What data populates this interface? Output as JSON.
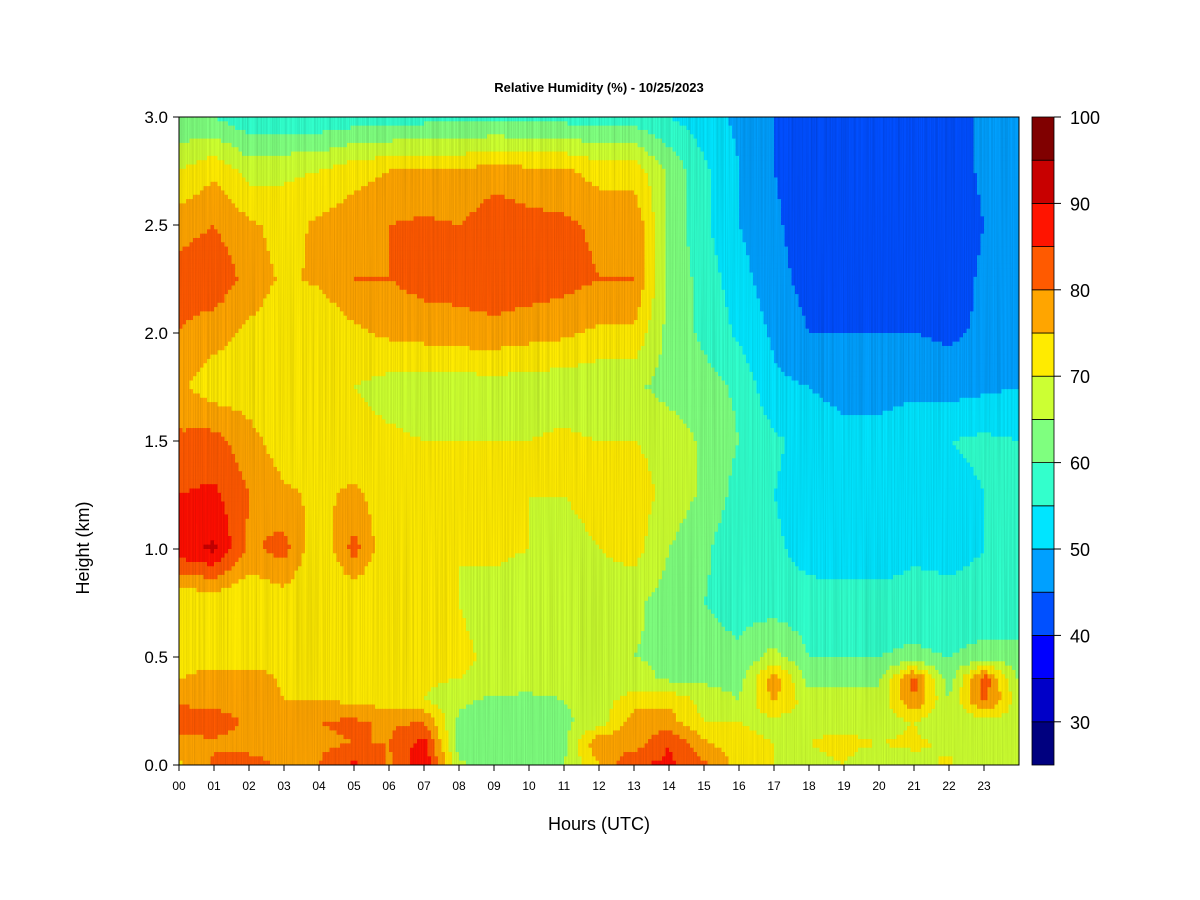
{
  "chart_data": {
    "type": "heatmap",
    "title": "Relative Humidity (%) - 10/25/2023",
    "xlabel": "Hours (UTC)",
    "ylabel": "Height (km)",
    "x_tick_labels": [
      "00",
      "01",
      "02",
      "03",
      "04",
      "05",
      "06",
      "07",
      "08",
      "09",
      "10",
      "11",
      "12",
      "13",
      "14",
      "15",
      "16",
      "17",
      "18",
      "19",
      "20",
      "21",
      "22",
      "23"
    ],
    "xlim": [
      0,
      24
    ],
    "y_ticks": [
      0.0,
      0.5,
      1.0,
      1.5,
      2.0,
      2.5,
      3.0
    ],
    "y_tick_labels": [
      "0.0",
      "0.5",
      "1.0",
      "1.5",
      "2.0",
      "2.5",
      "3.0"
    ],
    "ylim": [
      0,
      3
    ],
    "colorbar": {
      "levels": [
        25,
        30,
        35,
        40,
        45,
        50,
        55,
        60,
        65,
        70,
        75,
        80,
        85,
        90,
        95,
        100
      ],
      "tick_values": [
        30,
        40,
        50,
        60,
        70,
        80,
        90,
        100
      ],
      "tick_labels": [
        "30",
        "40",
        "50",
        "60",
        "70",
        "80",
        "90",
        "100"
      ],
      "colors": [
        "#00007f",
        "#0000c8",
        "#0000ff",
        "#0050ff",
        "#00a0ff",
        "#00e5ff",
        "#33ffcc",
        "#7fff7f",
        "#ccff33",
        "#ffeb00",
        "#ffa500",
        "#ff5a00",
        "#ff1400",
        "#c80000",
        "#800000"
      ]
    },
    "grid": false,
    "heights_km": [
      0.0,
      0.1,
      0.2,
      0.3,
      0.4,
      0.5,
      0.75,
      1.0,
      1.25,
      1.5,
      1.75,
      2.0,
      2.25,
      2.5,
      2.75,
      3.0
    ],
    "hours": [
      0,
      1,
      2,
      3,
      4,
      5,
      6,
      7,
      8,
      9,
      10,
      11,
      12,
      13,
      14,
      15,
      16,
      17,
      18,
      19,
      20,
      21,
      22,
      23,
      24
    ],
    "values": [
      [
        74,
        81,
        82,
        79,
        80,
        86,
        79,
        90,
        66,
        63,
        63,
        65,
        75,
        85,
        86,
        81,
        73,
        70,
        69,
        70,
        67,
        68,
        71,
        65,
        70
      ],
      [
        78,
        79,
        78,
        78,
        79,
        80,
        80,
        87,
        62,
        62,
        62,
        63,
        80,
        77,
        85,
        76,
        72,
        70,
        70,
        71,
        70,
        71,
        69,
        67,
        70
      ],
      [
        83,
        83,
        79,
        79,
        80,
        81,
        79,
        80,
        64,
        62,
        62,
        64,
        67,
        78,
        77,
        70,
        70,
        68,
        69,
        69,
        68,
        70,
        65,
        68,
        68
      ],
      [
        79,
        78,
        77,
        75,
        75,
        74,
        72,
        70,
        66,
        64,
        64,
        65,
        68,
        72,
        74,
        68,
        65,
        76,
        67,
        68,
        66,
        80,
        65,
        82,
        67
      ],
      [
        75,
        77,
        79,
        74,
        72,
        74,
        72,
        71,
        70,
        68,
        67,
        67,
        68,
        67,
        64,
        64,
        63,
        78,
        63,
        62,
        64,
        82,
        62,
        83,
        64
      ],
      [
        72,
        73,
        70,
        73,
        70,
        72,
        70,
        72,
        71,
        69,
        67,
        66,
        66,
        65,
        64,
        62,
        61,
        67,
        60,
        60,
        60,
        61,
        60,
        62,
        62
      ],
      [
        70,
        71,
        70,
        72,
        70,
        70,
        70,
        70,
        70,
        68,
        67,
        67,
        67,
        66,
        63,
        60,
        58,
        57,
        57,
        57,
        57,
        57,
        56,
        56,
        56
      ],
      [
        88,
        91,
        79,
        82,
        70,
        82,
        70,
        72,
        70,
        71,
        70,
        68,
        70,
        72,
        65,
        61,
        56,
        56,
        53,
        52,
        52,
        54,
        54,
        55,
        55
      ],
      [
        85,
        86,
        80,
        76,
        74,
        76,
        72,
        70,
        71,
        70,
        70,
        70,
        72,
        73,
        68,
        64,
        58,
        55,
        52,
        51,
        51,
        52,
        53,
        55,
        56
      ],
      [
        81,
        82,
        77,
        72,
        72,
        72,
        71,
        70,
        70,
        70,
        70,
        71,
        70,
        70,
        68,
        64,
        60,
        56,
        53,
        52,
        52,
        53,
        55,
        56,
        55
      ],
      [
        76,
        72,
        72,
        70,
        70,
        70,
        68,
        67,
        67,
        68,
        67,
        67,
        66,
        66,
        63,
        62,
        59,
        51,
        50,
        48,
        48,
        49,
        48,
        49,
        50
      ],
      [
        80,
        77,
        74,
        72,
        70,
        74,
        76,
        77,
        78,
        78,
        77,
        76,
        74,
        74,
        63,
        59,
        54,
        49,
        45,
        45,
        45,
        45,
        44,
        46,
        48
      ],
      [
        82,
        84,
        78,
        74,
        76,
        80,
        80,
        82,
        82,
        84,
        83,
        82,
        80,
        80,
        64,
        58,
        52,
        47,
        43,
        42,
        41,
        43,
        42,
        46,
        48
      ],
      [
        78,
        80,
        76,
        73,
        76,
        78,
        80,
        81,
        80,
        83,
        82,
        81,
        79,
        79,
        64,
        56,
        50,
        46,
        42,
        40,
        40,
        40,
        42,
        45,
        48
      ],
      [
        70,
        74,
        68,
        69,
        70,
        73,
        75,
        75,
        75,
        78,
        76,
        76,
        73,
        73,
        64,
        56,
        50,
        45,
        42,
        41,
        40,
        42,
        42,
        46,
        48
      ],
      [
        60,
        60,
        56,
        56,
        56,
        57,
        57,
        58,
        58,
        58,
        58,
        58,
        57,
        57,
        55,
        52,
        49,
        45,
        42,
        41,
        42,
        42,
        43,
        46,
        48
      ]
    ]
  }
}
